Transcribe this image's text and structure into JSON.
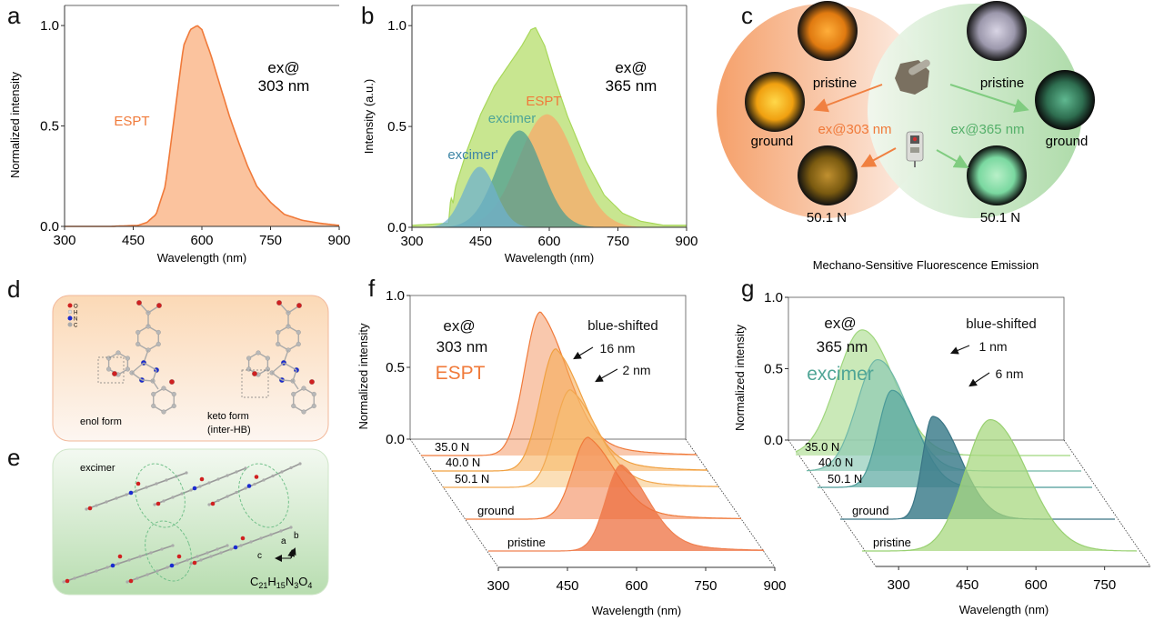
{
  "panel_labels": {
    "a": "a",
    "b": "b",
    "c": "c",
    "d": "d",
    "e": "e",
    "f": "f",
    "g": "g"
  },
  "colors": {
    "espt_orange": "#f07a3a",
    "espt_fill": "#fbc39e",
    "green_total": "#c8e690",
    "green_line": "#a8d85a",
    "excimer_teal": "#4fa596",
    "excimer_prime_blue": "#5aa5c4",
    "dark_teal": "#3f7f8d",
    "light_green": "#9dd67d"
  },
  "panel_c": {
    "caption": "Mechano-Sensitive Fluorescence Emission",
    "left_excitation": "ex@303 nm",
    "right_excitation": "ex@365 nm",
    "left_images": [
      "pristine",
      "ground",
      "50.1 N"
    ],
    "right_images": [
      "pristine",
      "ground",
      "50.1 N"
    ],
    "center_icons": [
      "mortar-pestle-icon",
      "force-gauge-icon"
    ]
  },
  "panel_d": {
    "legend": [
      "O",
      "H",
      "N",
      "C"
    ],
    "enol_label": "enol form",
    "keto_label_1": "keto form",
    "keto_label_2": "(inter-HB)"
  },
  "panel_e": {
    "label": "excimer",
    "axes": [
      "a",
      "b",
      "c"
    ],
    "formula": {
      "C": "21",
      "H": "15",
      "N": "3",
      "O": "4"
    }
  },
  "chart_data": [
    {
      "id": "a",
      "type": "area",
      "title": "",
      "xlabel": "Wavelength (nm)",
      "ylabel": "Normalized intensity",
      "xlim": [
        300,
        900
      ],
      "ylim": [
        0,
        1.1
      ],
      "xticks": [
        300,
        450,
        600,
        750,
        900
      ],
      "yticks": [
        "0.0",
        "0.5",
        "1.0"
      ],
      "annotations": [
        "ex@",
        "303 nm",
        "ESPT"
      ],
      "series": [
        {
          "name": "ESPT",
          "x": [
            300,
            400,
            460,
            480,
            500,
            520,
            540,
            560,
            575,
            590,
            600,
            620,
            640,
            660,
            680,
            700,
            720,
            750,
            780,
            820,
            860,
            900
          ],
          "y": [
            0,
            0,
            0.005,
            0.02,
            0.06,
            0.2,
            0.55,
            0.9,
            0.98,
            1.0,
            0.98,
            0.85,
            0.7,
            0.55,
            0.42,
            0.3,
            0.2,
            0.12,
            0.06,
            0.03,
            0.015,
            0.005
          ]
        }
      ]
    },
    {
      "id": "b",
      "type": "area",
      "xlabel": "Wavelength (nm)",
      "ylabel": "Intensity (a.u.)",
      "xlim": [
        300,
        900
      ],
      "ylim": [
        0,
        1.1
      ],
      "xticks": [
        300,
        450,
        600,
        750,
        900
      ],
      "yticks": [
        "0.0",
        "0.5",
        "1.0"
      ],
      "annotations": [
        "ex@",
        "365 nm"
      ],
      "series": [
        {
          "name": "total",
          "x": [
            300,
            380,
            385,
            390,
            395,
            420,
            450,
            480,
            510,
            540,
            560,
            570,
            590,
            610,
            640,
            680,
            720,
            760,
            800,
            850,
            900
          ],
          "y": [
            0.01,
            0.02,
            0.15,
            0.12,
            0.2,
            0.38,
            0.56,
            0.7,
            0.8,
            0.9,
            0.98,
            0.99,
            0.9,
            0.75,
            0.55,
            0.33,
            0.16,
            0.07,
            0.03,
            0.01,
            0.01
          ]
        },
        {
          "name": "ESPT",
          "center": 595,
          "amp": 0.56,
          "sigma": 62
        },
        {
          "name": "excimer",
          "center": 535,
          "amp": 0.48,
          "sigma": 50
        },
        {
          "name": "excimer'",
          "center": 448,
          "amp": 0.3,
          "sigma": 35
        }
      ]
    },
    {
      "id": "f",
      "type": "area",
      "xlabel": "Wavelength (nm)",
      "ylabel": "Normalized intensity",
      "xlim": [
        300,
        900
      ],
      "ylim": [
        0,
        1
      ],
      "xticks": [
        300,
        450,
        600,
        750,
        900
      ],
      "yticks": [
        "0.0",
        "0.5",
        "1.0"
      ],
      "annotations": [
        "ex@",
        "303 nm",
        "ESPT",
        "blue-shifted",
        "16 nm",
        "2 nm"
      ],
      "series": [
        {
          "name": "35.0 N",
          "center": 574,
          "amp": 1.0
        },
        {
          "name": "40.0 N",
          "center": 576,
          "amp": 1.0
        },
        {
          "name": "50.1 N",
          "center": 578,
          "amp": 1.0
        },
        {
          "name": "ground",
          "center": 574,
          "amp": 1.0
        },
        {
          "name": "pristine",
          "center": 590,
          "amp": 1.0
        }
      ]
    },
    {
      "id": "g",
      "type": "area",
      "xlabel": "Wavelength (nm)",
      "ylabel": "Normalized intensity",
      "xlim": [
        250,
        850
      ],
      "ylim": [
        0,
        1
      ],
      "xticks": [
        300,
        450,
        600,
        750
      ],
      "yticks": [
        "0.0",
        "0.5",
        "1.0"
      ],
      "annotations": [
        "ex@",
        "365 nm",
        "excimer",
        "blue-shifted",
        "1 nm",
        "6 nm"
      ],
      "series": [
        {
          "name": "35.0 N",
          "center": 528,
          "amp": 1.0
        },
        {
          "name": "40.0 N",
          "center": 530,
          "amp": 1.0
        },
        {
          "name": "50.1 N",
          "center": 531,
          "amp": 1.0
        },
        {
          "name": "ground",
          "center": 537,
          "amp": 1.0
        },
        {
          "name": "pristine",
          "center": 570,
          "amp": 1.0
        }
      ]
    }
  ]
}
